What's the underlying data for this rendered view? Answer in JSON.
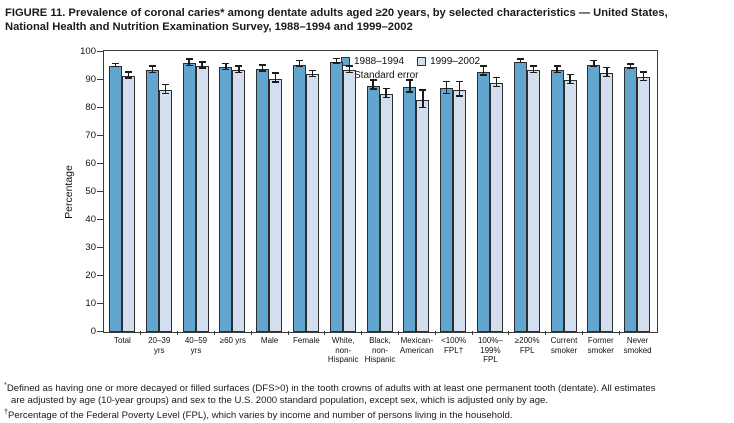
{
  "title": {
    "line1": "FIGURE 11. Prevalence of coronal caries* among dentate adults aged ≥20 years, by selected characteristics — United States,",
    "line2": "National Health and Nutrition Examination Survey, 1988–1994 and 1999–2002"
  },
  "chart_data": {
    "type": "bar",
    "ylabel": "Percentage",
    "ylim": [
      0,
      100
    ],
    "ytick_step": 10,
    "grid": false,
    "legend_position": "top-center-inside",
    "legend_note": "Standard error",
    "categories": [
      [
        "Total"
      ],
      [
        "20–39",
        "yrs"
      ],
      [
        "40–59",
        "yrs"
      ],
      [
        "≥60 yrs"
      ],
      [
        "Male"
      ],
      [
        "Female"
      ],
      [
        "White,",
        "non-",
        "Hispanic"
      ],
      [
        "Black,",
        "non-",
        "Hispanic"
      ],
      [
        "Mexican-",
        "American"
      ],
      [
        "<100%",
        "FPL†"
      ],
      [
        "100%–",
        "199%",
        "FPL"
      ],
      [
        "≥200%",
        "FPL"
      ],
      [
        "Current",
        "smoker"
      ],
      [
        "Former",
        "smoker"
      ],
      [
        "Never",
        "smoked"
      ]
    ],
    "series": [
      {
        "name": "1988–1994",
        "color": "#62A5CE",
        "values": [
          95,
          93.5,
          96,
          94.5,
          94,
          95.5,
          96.5,
          88,
          87.5,
          87,
          93,
          96.5,
          93.5,
          95.5,
          94.5
        ],
        "standard_errors": [
          0.5,
          1,
          1,
          1,
          1,
          1,
          0.7,
          1.5,
          2,
          2,
          1.5,
          0.5,
          1,
          1,
          0.7
        ]
      },
      {
        "name": "1999–2002",
        "color": "#D3DEEE",
        "values": [
          91.5,
          86.5,
          95,
          93.5,
          90.5,
          92,
          93.5,
          85,
          83,
          86.5,
          89,
          93.5,
          90,
          92.5,
          91
        ],
        "standard_errors": [
          1,
          1.5,
          1,
          1,
          1.5,
          1,
          1,
          1.5,
          3,
          2.5,
          1.5,
          1,
          1.5,
          1.5,
          1.5
        ]
      }
    ]
  },
  "footnotes": [
    {
      "marker": "*",
      "text": "Defined as having one or more decayed or filled surfaces (DFS>0) in the tooth crowns of adults with at least one permanent tooth (dentate). All estimates"
    },
    {
      "marker": "",
      "text": "are adjusted by age (10-year groups) and sex to the U.S. 2000 standard population, except sex, which is adjusted only by age."
    },
    {
      "marker": "†",
      "text": "Percentage of the Federal Poverty Level (FPL), which varies by income and number of persons living in the household."
    }
  ]
}
